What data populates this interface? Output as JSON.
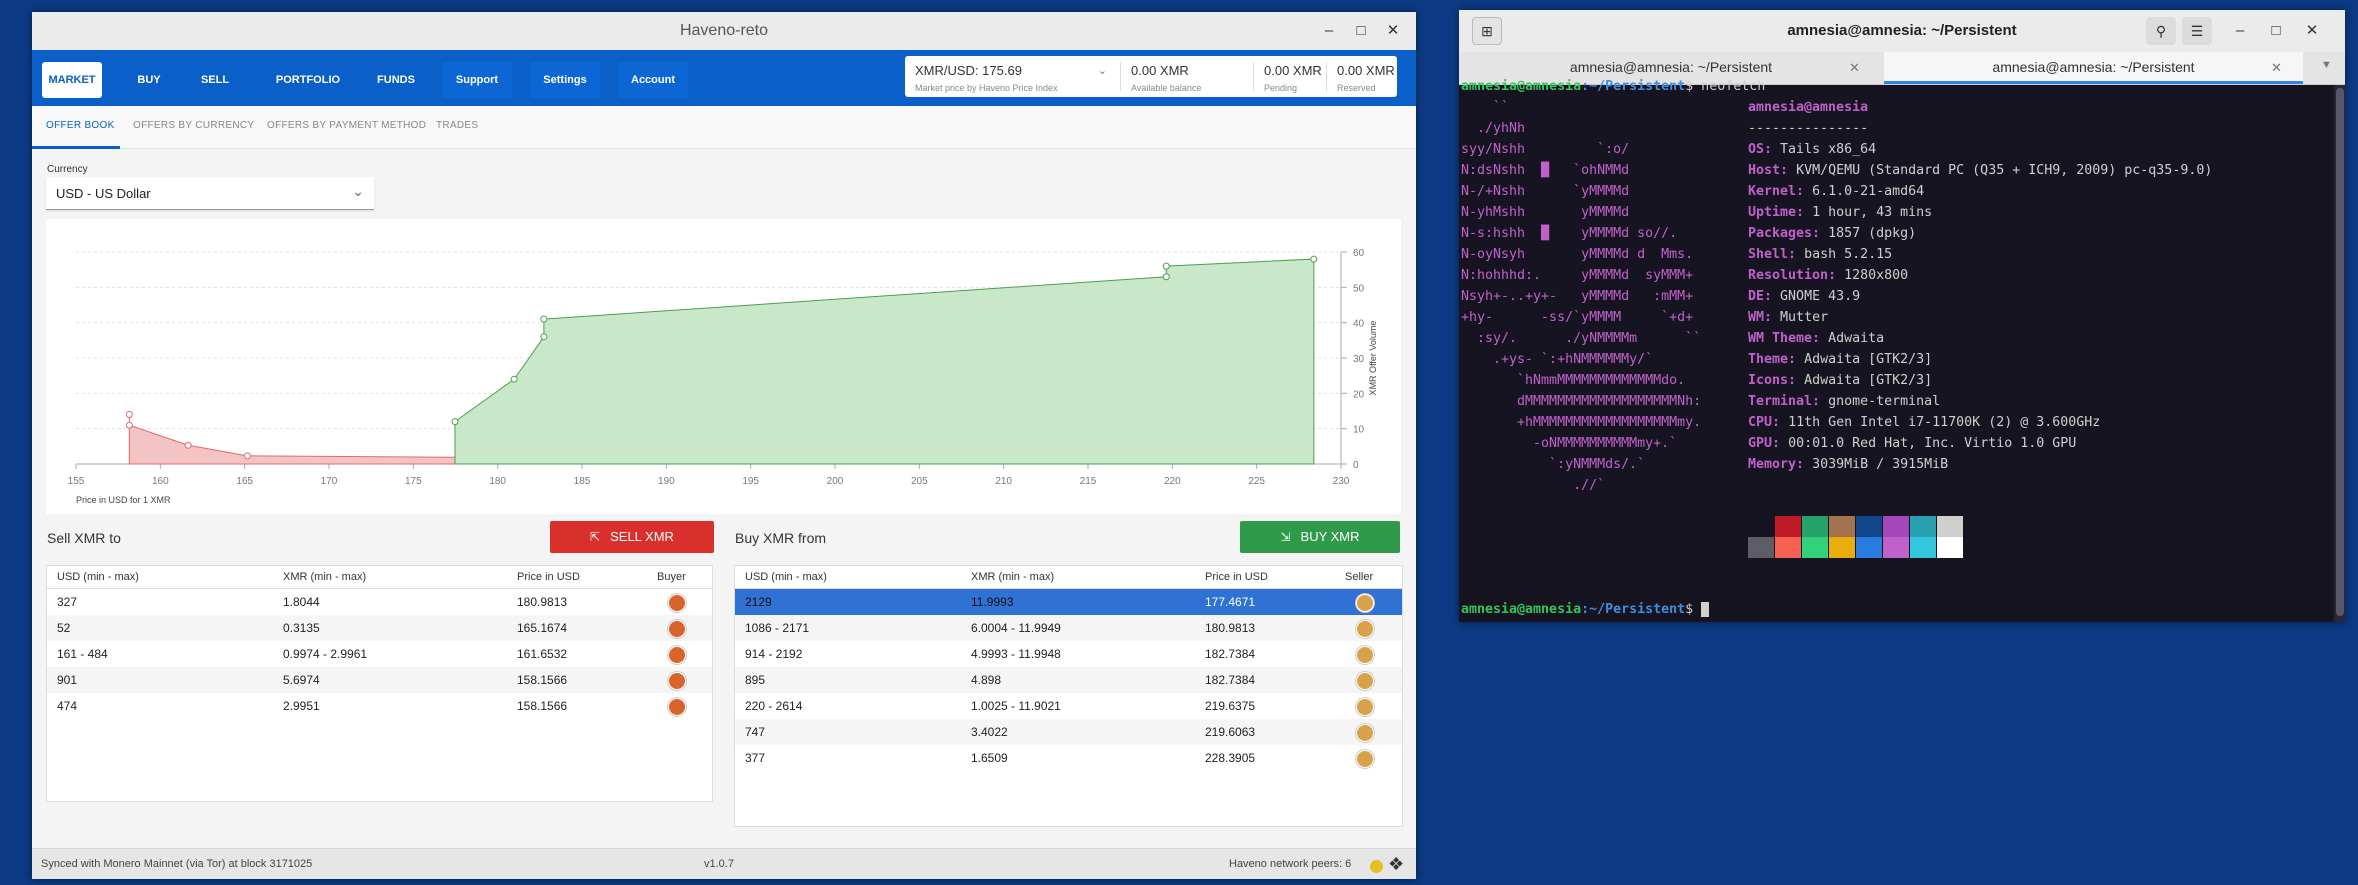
{
  "haveno": {
    "title": "Haveno-reto",
    "nav": [
      {
        "label": "MARKET"
      },
      {
        "label": "BUY"
      },
      {
        "label": "SELL"
      },
      {
        "label": "PORTFOLIO"
      },
      {
        "label": "FUNDS"
      },
      {
        "label": "Support"
      },
      {
        "label": "Settings"
      },
      {
        "label": "Account"
      }
    ],
    "price": {
      "value": "XMR/USD: 175.69",
      "sub": "Market price by Haveno Price Index"
    },
    "balances": [
      {
        "value": "0.00 XMR",
        "label": "Available balance"
      },
      {
        "value": "0.00 XMR",
        "label": "Pending"
      },
      {
        "value": "0.00 XMR",
        "label": "Reserved"
      }
    ],
    "subtabs": [
      "OFFER BOOK",
      "OFFERS BY CURRENCY",
      "OFFERS BY PAYMENT METHOD",
      "TRADES"
    ],
    "currency": {
      "label": "Currency",
      "value": "USD  -  US Dollar"
    },
    "sell": {
      "title": "Sell XMR to",
      "button": "SELL XMR",
      "headers": [
        "USD (min - max)",
        "XMR (min - max)",
        "Price in USD",
        "Buyer"
      ],
      "rows": [
        [
          "327",
          "1.8044",
          "180.9813"
        ],
        [
          "52",
          "0.3135",
          "165.1674"
        ],
        [
          "161 - 484",
          "0.9974 - 2.9961",
          "161.6532"
        ],
        [
          "901",
          "5.6974",
          "158.1566"
        ],
        [
          "474",
          "2.9951",
          "158.1566"
        ]
      ]
    },
    "buy": {
      "title": "Buy XMR from",
      "button": "BUY XMR",
      "headers": [
        "USD (min - max)",
        "XMR (min - max)",
        "Price in USD",
        "Seller"
      ],
      "rows": [
        [
          "2129",
          "11.9993",
          "177.4671"
        ],
        [
          "1086 - 2171",
          "6.0004 - 11.9949",
          "180.9813"
        ],
        [
          "914 - 2192",
          "4.9993 - 11.9948",
          "182.7384"
        ],
        [
          "895",
          "4.898",
          "182.7384"
        ],
        [
          "220 - 2614",
          "1.0025 - 11.9021",
          "219.6375"
        ],
        [
          "747",
          "3.4022",
          "219.6063"
        ],
        [
          "377",
          "1.6509",
          "228.3905"
        ]
      ],
      "selected_row": 0
    },
    "status": {
      "sync": "Synced with Monero Mainnet (via Tor) at block 3171025",
      "version": "v1.0.7",
      "peers": "Haveno network peers: 6"
    },
    "colors": {
      "nav": "#0a5fc8",
      "sell": "#d9302c",
      "buy": "#2f9a4a",
      "bid_fill": "#f4c4c4",
      "ask_fill": "#c9e8c9",
      "selected": "#3072d3"
    }
  },
  "chart_data": {
    "type": "area",
    "xlabel": "Price in USD for 1 XMR",
    "ylabel": "XMR Offer Volume",
    "xlim": [
      155,
      230
    ],
    "ylim": [
      0,
      60
    ],
    "x_ticks": [
      155,
      160,
      165,
      170,
      175,
      180,
      185,
      190,
      195,
      200,
      205,
      210,
      215,
      220,
      225,
      230
    ],
    "y_ticks": [
      0,
      10,
      20,
      30,
      40,
      50,
      60
    ],
    "grid": true,
    "y_axis_side": "right",
    "series": [
      {
        "x": [
          158.16,
          158.16,
          161.65,
          165.17,
          180.98
        ],
        "y": [
          14,
          11,
          5.3,
          2.3,
          1.8
        ]
      },
      {
        "x": [
          177.47,
          180.98,
          182.74,
          182.74,
          219.64,
          219.64,
          228.39
        ],
        "y": [
          12,
          24,
          36,
          41,
          53,
          56,
          58
        ]
      }
    ]
  },
  "terminal": {
    "title": "amnesia@amnesia: ~/Persistent",
    "tabs": [
      "amnesia@amnesia: ~/Persistent",
      "amnesia@amnesia: ~/Persistent"
    ],
    "prompt_user": "amnesia@amnesia",
    "prompt_path": ":~/Persistent",
    "command": "$ neofetch",
    "header": "amnesia@amnesia",
    "rule": "---------------",
    "art": [
      "    ``",
      "  ./yhNh",
      "syy/Nshh         `:o/",
      "N:dsNshh  █   `ohNMMd",
      "N-/+Nshh      `yMMMMd",
      "N-yhMshh       yMMMMd",
      "N-s:hshh  █    yMMMMd so//.",
      "N-oyNsyh       yMMMMd d  Mms.",
      "N:hohhhd:.     yMMMMd  syMMM+",
      "Nsyh+-..+y+-   yMMMMd   :mMM+",
      "+hy-      -ss/`yMMMM     `+d+",
      "  :sy/.      ./yNMMMMm      ``",
      "    .+ys- `:+hNMMMMMMy/`",
      "       `hNmmMMMMMMMMMMMMMdo.",
      "       dMMMMMMMMMMMMMMMMMMMNh:",
      "       +hMMMMMMMMMMMMMMMMMMmy.",
      "         -oNMMMMMMMMMMmy+.`",
      "           `:yNMMMds/.`",
      "              .//`"
    ],
    "info": [
      {
        "key": "OS",
        "value": "Tails x86_64"
      },
      {
        "key": "Host",
        "value": "KVM/QEMU (Standard PC (Q35 + ICH9, 2009) pc-q35-9.0)"
      },
      {
        "key": "Kernel",
        "value": "6.1.0-21-amd64"
      },
      {
        "key": "Uptime",
        "value": "1 hour, 43 mins"
      },
      {
        "key": "Packages",
        "value": "1857 (dpkg)"
      },
      {
        "key": "Shell",
        "value": "bash 5.2.15"
      },
      {
        "key": "Resolution",
        "value": "1280x800"
      },
      {
        "key": "DE",
        "value": "GNOME 43.9"
      },
      {
        "key": "WM",
        "value": "Mutter"
      },
      {
        "key": "WM Theme",
        "value": "Adwaita"
      },
      {
        "key": "Theme",
        "value": "Adwaita [GTK2/3]"
      },
      {
        "key": "Icons",
        "value": "Adwaita [GTK2/3]"
      },
      {
        "key": "Terminal",
        "value": "gnome-terminal"
      },
      {
        "key": "CPU",
        "value": "11th Gen Intel i7-11700K (2) @ 3.600GHz"
      },
      {
        "key": "GPU",
        "value": "00:01.0 Red Hat, Inc. Virtio 1.0 GPU"
      },
      {
        "key": "Memory",
        "value": "3039MiB / 3915MiB"
      }
    ],
    "palette_top": [
      "#171421",
      "#c01c28",
      "#26a269",
      "#a2734c",
      "#12488b",
      "#a347ba",
      "#2aa1b3",
      "#d0cfcc"
    ],
    "palette_bottom": [
      "#5e5c64",
      "#f66151",
      "#33d17a",
      "#e9ad0c",
      "#2a7bde",
      "#c061cb",
      "#33c7de",
      "#ffffff"
    ],
    "final_prompt": "$ "
  }
}
